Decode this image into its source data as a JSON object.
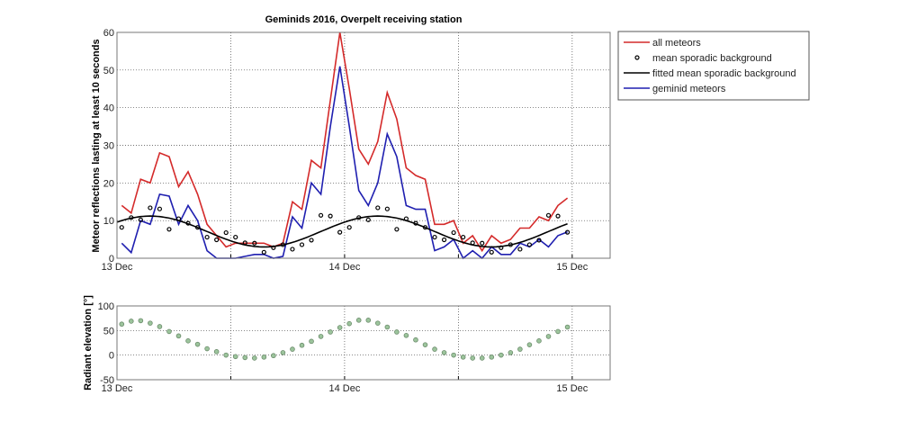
{
  "chart_data": [
    {
      "type": "line",
      "title": "Geminids 2016, Overpelt receiving station",
      "xlabel": "",
      "ylabel": "Meteor reflections lasting at least 10 seconds",
      "x_unit": "hours since 13 Dec 00:00",
      "xlim": [
        0,
        52
      ],
      "ylim": [
        0,
        60
      ],
      "x_ticks": [
        {
          "value": 0,
          "label": "13 Dec"
        },
        {
          "value": 24,
          "label": "14 Dec"
        },
        {
          "value": 48,
          "label": "15 Dec"
        }
      ],
      "x_minor_grid": [
        12,
        36
      ],
      "y_ticks": [
        0,
        10,
        20,
        30,
        40,
        50,
        60
      ],
      "grid": true,
      "legend_position": "outside-right",
      "x": [
        0.5,
        1.5,
        2.5,
        3.5,
        4.5,
        5.5,
        6.5,
        7.5,
        8.5,
        9.5,
        10.5,
        11.5,
        12.5,
        13.5,
        14.5,
        15.5,
        16.5,
        17.5,
        18.5,
        19.5,
        20.5,
        21.5,
        22.5,
        23.5,
        24.5,
        25.5,
        26.5,
        27.5,
        28.5,
        29.5,
        30.5,
        31.5,
        32.5,
        33.5,
        34.5,
        35.5,
        36.5,
        37.5,
        38.5,
        39.5,
        40.5,
        41.5,
        42.5,
        43.5,
        44.5,
        45.5,
        46.5,
        47.5
      ],
      "series": [
        {
          "name": "all meteors",
          "style": "line",
          "color": "#d42a2a",
          "values": [
            14,
            12,
            21,
            20,
            28,
            27,
            19,
            23,
            17,
            9,
            6,
            3,
            4,
            4,
            4,
            4,
            3,
            4,
            15,
            13,
            26,
            24,
            42,
            60,
            45,
            29,
            25,
            31,
            44,
            37,
            24,
            22,
            21,
            9,
            9,
            10,
            4,
            6,
            2,
            6,
            4,
            5,
            8,
            8,
            11,
            10,
            14,
            16
          ]
        },
        {
          "name": "mean sporadic background",
          "style": "markers",
          "color": "#000000",
          "values": [
            8.2,
            10.8,
            10.2,
            13.4,
            13.1,
            7.7,
            10.5,
            9.3,
            8.2,
            5.6,
            4.9,
            6.8,
            5.6,
            4.1,
            4,
            1.6,
            2.8,
            3.6,
            2.4,
            3.6,
            4.8,
            11.4,
            11.2,
            6.9,
            8.2,
            10.8,
            10.2,
            13.4,
            13.1,
            7.7,
            10.5,
            9.3,
            8.2,
            5.6,
            4.9,
            6.8,
            5.6,
            4.1,
            4,
            1.6,
            2.8,
            3.6,
            2.4,
            3.6,
            4.8,
            11.4,
            11.2,
            6.9
          ]
        },
        {
          "name": "fitted mean sporadic background",
          "style": "curve",
          "color": "#000000",
          "mean": 7.1,
          "amplitude": 4.1,
          "period_hours": 24,
          "peak_hour": 3.5
        },
        {
          "name": "geminid meteors",
          "style": "line",
          "color": "#1f1fb0",
          "values": [
            4,
            1.5,
            10,
            9,
            17,
            16.5,
            9,
            14,
            10,
            2,
            0,
            0,
            0,
            0.5,
            1,
            1,
            0,
            0.5,
            11,
            8,
            20,
            17,
            35,
            51,
            35,
            18,
            14,
            20,
            33,
            27,
            14,
            13,
            13,
            2,
            3,
            5,
            0,
            2,
            0,
            3,
            1,
            1,
            4,
            3,
            5,
            3,
            6,
            7
          ]
        }
      ]
    },
    {
      "type": "scatter",
      "xlabel": "",
      "ylabel": "Radiant elevation [°]",
      "xlim": [
        0,
        52
      ],
      "ylim": [
        -50,
        100
      ],
      "x_ticks": [
        {
          "value": 0,
          "label": "13 Dec"
        },
        {
          "value": 24,
          "label": "14 Dec"
        },
        {
          "value": 48,
          "label": "15 Dec"
        }
      ],
      "x_minor_grid": [
        12,
        36
      ],
      "y_ticks": [
        -50,
        0,
        50,
        100
      ],
      "grid": true,
      "marker_color": "#9cc49c",
      "x": [
        0.5,
        1.5,
        2.5,
        3.5,
        4.5,
        5.5,
        6.5,
        7.5,
        8.5,
        9.5,
        10.5,
        11.5,
        12.5,
        13.5,
        14.5,
        15.5,
        16.5,
        17.5,
        18.5,
        19.5,
        20.5,
        21.5,
        22.5,
        23.5,
        24.5,
        25.5,
        26.5,
        27.5,
        28.5,
        29.5,
        30.5,
        31.5,
        32.5,
        33.5,
        34.5,
        35.5,
        36.5,
        37.5,
        38.5,
        39.5,
        40.5,
        41.5,
        42.5,
        43.5,
        44.5,
        45.5,
        46.5,
        47.5
      ],
      "values": [
        63,
        69,
        70,
        65,
        58,
        48,
        39,
        29,
        22,
        13,
        7,
        0,
        -3,
        -5,
        -6,
        -4,
        -1,
        5,
        12,
        20,
        28,
        38,
        47,
        56,
        64,
        71,
        71,
        65,
        57,
        47,
        40,
        31,
        21,
        12,
        5,
        0,
        -4,
        -6,
        -6,
        -4,
        0,
        5,
        12,
        21,
        29,
        38,
        48,
        57
      ]
    }
  ]
}
